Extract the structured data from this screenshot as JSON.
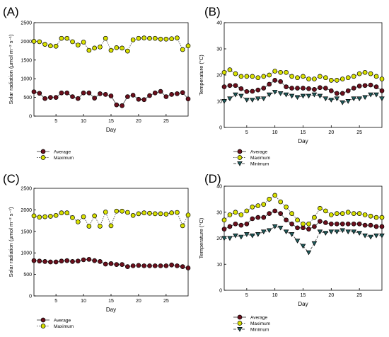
{
  "colors": {
    "average": "#6b0f1c",
    "maximum": "#d8e000",
    "minimum": "#1f5c5c",
    "line": "#555555"
  },
  "chart_data": [
    {
      "panel": "(A)",
      "type": "line",
      "xlabel": "Day",
      "ylabel": "Solar radiation (µmol m⁻² s⁻¹)",
      "xlim": [
        1,
        29
      ],
      "ylim": [
        0,
        2500
      ],
      "xticks": [
        5,
        10,
        15,
        20,
        25
      ],
      "yticks": [
        0,
        500,
        1000,
        1500,
        2000,
        2500
      ],
      "grid": false,
      "legend_position": "below plot, left",
      "x": [
        1,
        2,
        3,
        4,
        5,
        6,
        7,
        8,
        9,
        10,
        11,
        12,
        13,
        14,
        15,
        16,
        17,
        18,
        19,
        20,
        21,
        22,
        23,
        24,
        25,
        26,
        27,
        28,
        29
      ],
      "series": [
        {
          "name": "Average",
          "key": "average",
          "line": "solid",
          "values": [
            650,
            610,
            470,
            500,
            500,
            620,
            620,
            520,
            470,
            620,
            620,
            480,
            600,
            580,
            540,
            300,
            280,
            520,
            560,
            450,
            440,
            550,
            620,
            660,
            520,
            580,
            600,
            630,
            460
          ]
        },
        {
          "name": "Maximum",
          "key": "maximum",
          "line": "dotted",
          "values": [
            2000,
            1990,
            1920,
            1880,
            1870,
            2080,
            2080,
            1990,
            1900,
            1980,
            1760,
            1820,
            1850,
            2080,
            1760,
            1830,
            1820,
            1740,
            2040,
            2080,
            2090,
            2080,
            2080,
            2060,
            2060,
            2070,
            2090,
            1780,
            1880
          ]
        }
      ]
    },
    {
      "panel": "(B)",
      "type": "line",
      "xlabel": "Day",
      "ylabel": "Temperature (°C)",
      "xlim": [
        1,
        29
      ],
      "ylim": [
        0,
        40
      ],
      "xticks": [
        5,
        10,
        15,
        20,
        25
      ],
      "yticks": [
        0,
        10,
        20,
        30,
        40
      ],
      "grid": false,
      "legend_position": "below plot, left",
      "x": [
        1,
        2,
        3,
        4,
        5,
        6,
        7,
        8,
        9,
        10,
        11,
        12,
        13,
        14,
        15,
        16,
        17,
        18,
        19,
        20,
        21,
        22,
        23,
        24,
        25,
        26,
        27,
        28,
        29
      ],
      "series": [
        {
          "name": "Average",
          "key": "average",
          "line": "solid",
          "values": [
            15.5,
            16,
            16,
            14.8,
            13.7,
            13.8,
            14.3,
            15,
            16.5,
            18,
            17.5,
            15.5,
            15,
            15,
            15,
            14.8,
            14.5,
            15.2,
            15,
            14,
            13,
            13,
            14,
            15,
            15.8,
            16,
            16.2,
            15.5,
            14
          ]
        },
        {
          "name": "Maximum",
          "key": "maximum",
          "line": "dotted",
          "values": [
            21,
            22,
            20.5,
            19.5,
            19.5,
            19.5,
            19,
            19.5,
            20,
            21.5,
            21,
            21,
            19.5,
            19,
            19.5,
            18.5,
            18.5,
            19.5,
            19,
            18,
            18,
            18.5,
            19,
            19.5,
            20.5,
            21,
            20.5,
            19.5,
            18.5
          ]
        },
        {
          "name": "Minimum",
          "key": "minimum",
          "line": "dashed",
          "values": [
            10,
            11,
            12.5,
            12,
            10.5,
            10.5,
            11,
            11,
            12.5,
            13.5,
            13,
            12.5,
            12,
            11.5,
            12,
            12,
            12.5,
            12,
            11,
            10.5,
            11,
            9.5,
            10,
            11,
            11,
            11.5,
            12.5,
            12.5,
            11
          ]
        }
      ]
    },
    {
      "panel": "(C)",
      "type": "line",
      "xlabel": "Day",
      "ylabel": "Solar radiation (µmol m⁻² s⁻¹)",
      "xlim": [
        1,
        29
      ],
      "ylim": [
        0,
        2500
      ],
      "xticks": [
        5,
        10,
        15,
        20,
        25
      ],
      "yticks": [
        0,
        500,
        1000,
        1500,
        2000,
        2500
      ],
      "grid": false,
      "legend_position": "below plot, left",
      "x": [
        1,
        2,
        3,
        4,
        5,
        6,
        7,
        8,
        9,
        10,
        11,
        12,
        13,
        14,
        15,
        16,
        17,
        18,
        19,
        20,
        21,
        22,
        23,
        24,
        25,
        26,
        27,
        28,
        29
      ],
      "series": [
        {
          "name": "Average",
          "key": "average",
          "line": "solid",
          "values": [
            820,
            810,
            800,
            790,
            790,
            810,
            820,
            800,
            810,
            840,
            850,
            820,
            800,
            740,
            750,
            730,
            730,
            680,
            700,
            710,
            700,
            700,
            700,
            700,
            700,
            720,
            700,
            680,
            650
          ]
        },
        {
          "name": "Maximum",
          "key": "maximum",
          "line": "dotted",
          "values": [
            1860,
            1830,
            1840,
            1850,
            1870,
            1930,
            1930,
            1820,
            1720,
            1840,
            1620,
            1860,
            1620,
            1950,
            1630,
            1970,
            1970,
            1940,
            1870,
            1910,
            1930,
            1920,
            1910,
            1910,
            1900,
            1930,
            1940,
            1630,
            1880
          ]
        }
      ]
    },
    {
      "panel": "(D)",
      "type": "line",
      "xlabel": "Day",
      "ylabel": "Temperature (°C)",
      "xlim": [
        1,
        29
      ],
      "ylim": [
        0,
        40
      ],
      "xticks": [
        5,
        10,
        15,
        20,
        25
      ],
      "yticks": [
        0,
        10,
        20,
        30,
        40
      ],
      "grid": false,
      "legend_position": "below plot, left",
      "x": [
        1,
        2,
        3,
        4,
        5,
        6,
        7,
        8,
        9,
        10,
        11,
        12,
        13,
        14,
        15,
        16,
        17,
        18,
        19,
        20,
        21,
        22,
        23,
        24,
        25,
        26,
        27,
        28,
        29
      ],
      "series": [
        {
          "name": "Average",
          "key": "average",
          "line": "solid",
          "values": [
            23.5,
            24.5,
            25.5,
            25,
            25.5,
            27.5,
            28,
            28,
            29.5,
            30.5,
            29.5,
            27,
            25.5,
            24,
            24,
            23.5,
            24.5,
            26.5,
            26,
            25.5,
            25.5,
            25.5,
            25.5,
            25.5,
            25.5,
            25,
            25,
            24.5,
            24.5
          ]
        },
        {
          "name": "Maximum",
          "key": "maximum",
          "line": "dotted",
          "values": [
            27,
            29,
            30,
            29,
            30.5,
            32,
            32.5,
            33,
            35,
            36.5,
            34,
            32,
            29.5,
            27,
            25.5,
            25.5,
            28,
            31.5,
            30.5,
            29,
            29.5,
            29.5,
            30,
            29.5,
            29.5,
            29,
            28.5,
            28,
            28
          ]
        },
        {
          "name": "Minimum",
          "key": "minimum",
          "line": "dashed",
          "values": [
            20,
            20,
            21,
            20.5,
            21.5,
            21,
            21.5,
            22.5,
            23,
            24.5,
            24,
            22.5,
            21.5,
            19,
            17,
            14.5,
            18,
            22.5,
            22,
            22.5,
            22.5,
            23,
            22.5,
            22.5,
            22,
            21,
            20.5,
            21,
            21
          ]
        }
      ]
    }
  ]
}
